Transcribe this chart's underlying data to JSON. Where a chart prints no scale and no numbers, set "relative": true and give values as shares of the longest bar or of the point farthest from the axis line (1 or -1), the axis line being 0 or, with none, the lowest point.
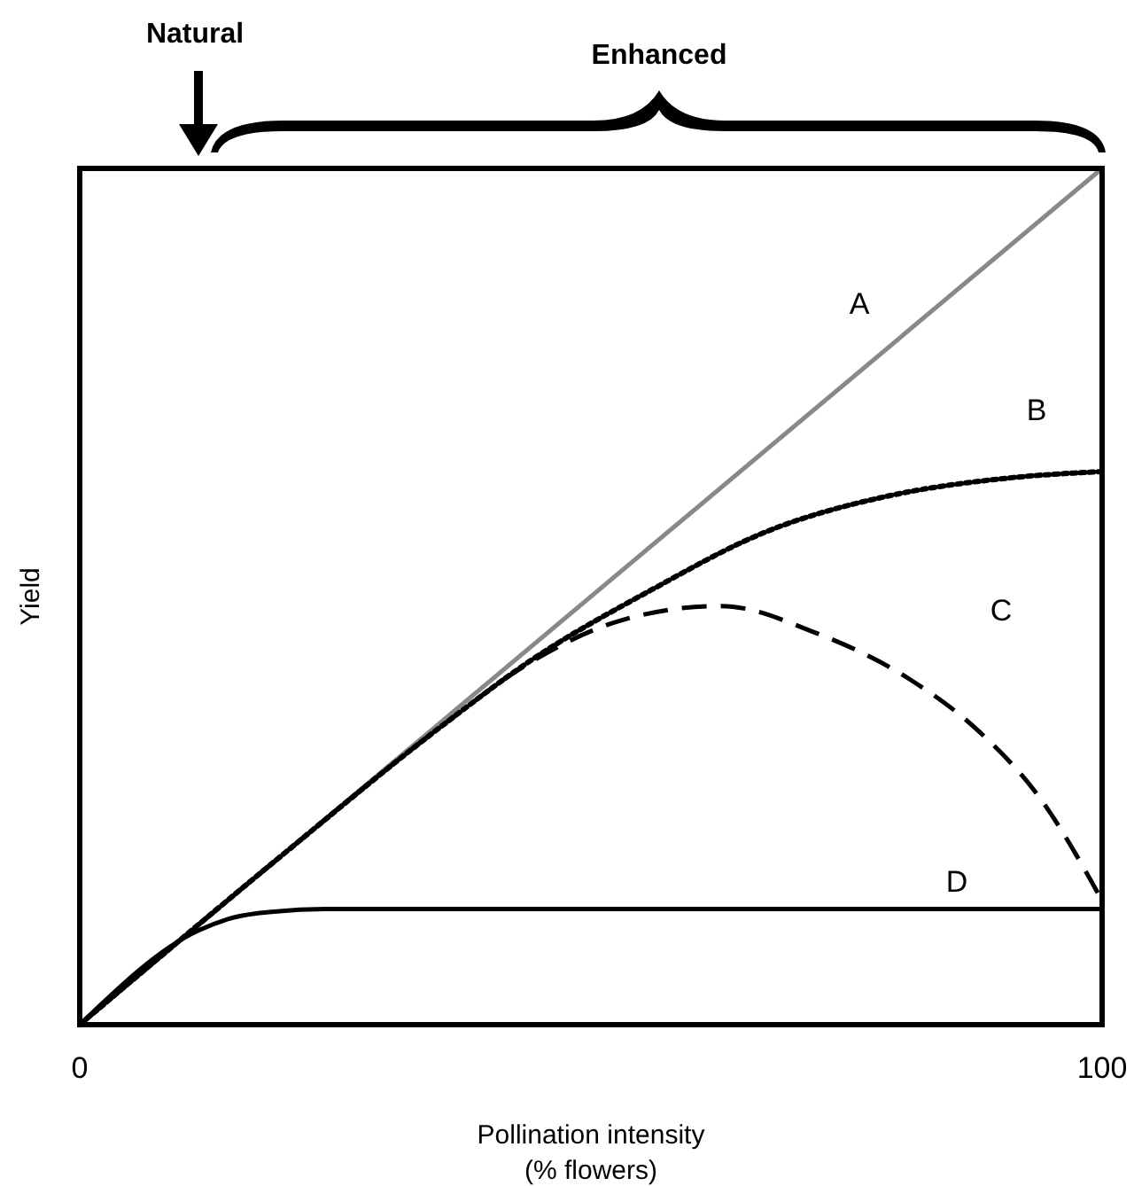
{
  "chart_data": {
    "type": "line",
    "xlabel": "Pollination intensity\n(% flowers)",
    "ylabel": "Yield",
    "relative": true,
    "xlim": [
      0,
      100
    ],
    "xticks": [
      0,
      100
    ],
    "annotations": [
      "Natural",
      "Enhanced"
    ],
    "series": [
      {
        "name": "A",
        "color": "#888888",
        "line_style": "solid",
        "x": [
          0,
          100
        ],
        "values": [
          0,
          1
        ]
      },
      {
        "name": "B",
        "color": "#000000",
        "line_style": "dotted",
        "x": [
          0,
          20,
          35,
          44.2,
          55.8,
          67.2,
          78.9,
          90.5,
          100
        ],
        "values": [
          0,
          0.2,
          0.345,
          0.426,
          0.507,
          0.576,
          0.617,
          0.638,
          0.646
        ]
      },
      {
        "name": "C",
        "color": "#000000",
        "line_style": "dashed",
        "x": [
          0,
          20,
          35,
          44.2,
          52.9,
          62.7,
          71.9,
          81.1,
          88,
          93.9,
          100
        ],
        "values": [
          0,
          0.2,
          0.345,
          0.424,
          0.472,
          0.489,
          0.458,
          0.404,
          0.342,
          0.265,
          0.145
        ]
      },
      {
        "name": "D",
        "color": "#000000",
        "line_style": "solid",
        "x": [
          0,
          11.6,
          15,
          19,
          24,
          100
        ],
        "values": [
          0,
          0.11,
          0.125,
          0.132,
          0.135,
          0.135
        ]
      }
    ]
  }
}
